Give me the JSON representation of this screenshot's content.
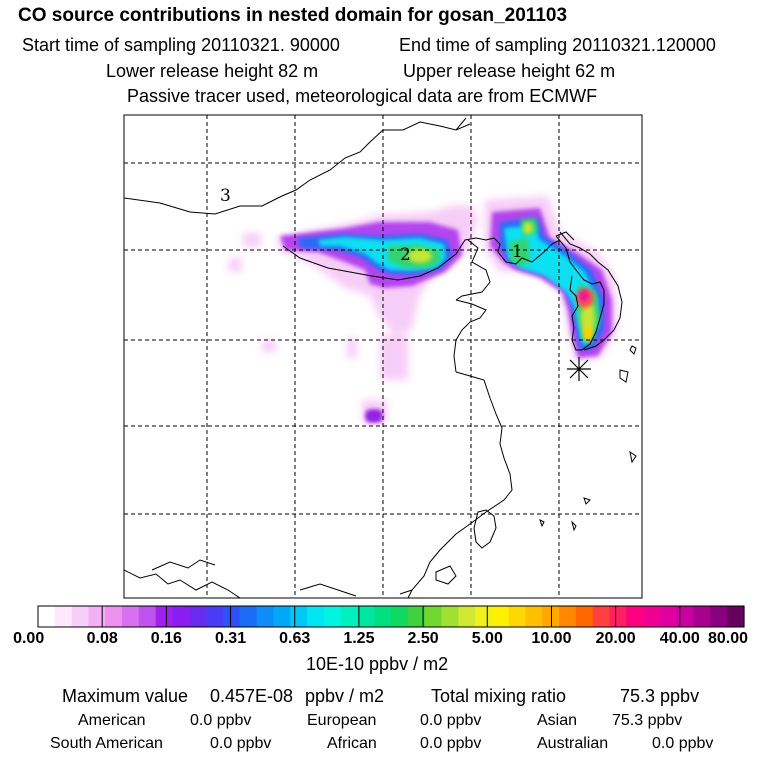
{
  "title": "CO  source contributions in nested domain for gosan_201103",
  "sampling": {
    "start_label": "Start time of sampling 20110321. 90000",
    "end_label": "End time of sampling 20110321.120000"
  },
  "release": {
    "lower_label": "Lower release height   82 m",
    "upper_label": "Upper release height   62 m"
  },
  "tracer_note": "Passive tracer used, meteorological data are from ECMWF",
  "map": {
    "region_labels": [
      "1",
      "2",
      "3"
    ],
    "receptor_marker": "asterisk-marker"
  },
  "colorbar": {
    "ticks": [
      "0.00",
      "0.08",
      "0.16",
      "0.31",
      "0.63",
      "1.25",
      "2.50",
      "5.00",
      "10.00",
      "20.00",
      "40.00",
      "80.00"
    ],
    "colors": [
      "#ffffff",
      "#fde8fd",
      "#f8cdf8",
      "#f3b0f3",
      "#ee90ee",
      "#d870f0",
      "#c050f0",
      "#a020f0",
      "#8a1ef0",
      "#6a2af0",
      "#4a3cf4",
      "#2d50f8",
      "#1c6cf8",
      "#0e8cf8",
      "#00a8f8",
      "#00c8f8",
      "#00e4f4",
      "#00f4e0",
      "#00f0c0",
      "#00e8a0",
      "#00e080",
      "#10d860",
      "#40d040",
      "#70d830",
      "#a0e030",
      "#d0e830",
      "#f0f020",
      "#fff000",
      "#ffd800",
      "#ffc000",
      "#ffa800",
      "#ff8800",
      "#ff6800",
      "#ff4040",
      "#ff2060",
      "#ff0080",
      "#f00090",
      "#e000a0",
      "#c800a0",
      "#a80090",
      "#880080",
      "#680060"
    ],
    "unit_label": "10E-10 ppbv / m2"
  },
  "summary": {
    "max_label": "Maximum value",
    "max_value": "0.457E-08",
    "max_unit": "ppbv / m2",
    "total_label": "Total mixing ratio",
    "total_value": "75.3 ppbv",
    "sources": [
      {
        "name": "American",
        "value": "0.0 ppbv"
      },
      {
        "name": "European",
        "value": "0.0 ppbv"
      },
      {
        "name": "Asian",
        "value": "75.3 ppbv"
      },
      {
        "name": "South American",
        "value": "0.0 ppbv"
      },
      {
        "name": "African",
        "value": "0.0 ppbv"
      },
      {
        "name": "Australian",
        "value": "0.0 ppbv"
      }
    ]
  }
}
